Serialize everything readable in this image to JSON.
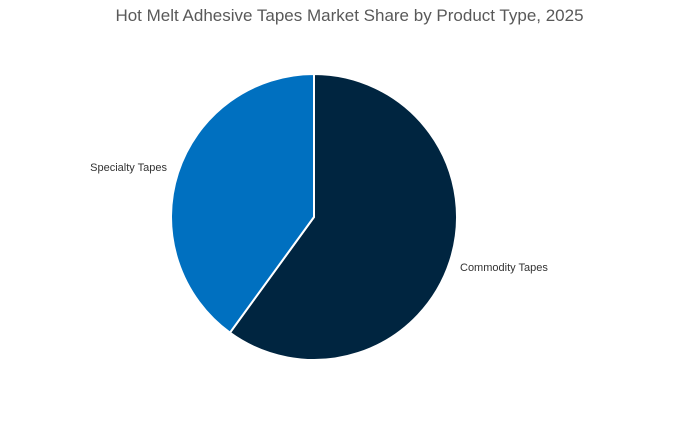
{
  "chart_data": {
    "type": "pie",
    "title": "Hot Melt Adhesive Tapes Market Share by Product Type, 2025",
    "categories": [
      "Commodity Tapes",
      "Specialty Tapes"
    ],
    "values": [
      60,
      40
    ],
    "colors": [
      "#002540",
      "#0070C0"
    ],
    "start_angle": "12 o'clock, clockwise",
    "legend": "none (direct labels)"
  }
}
